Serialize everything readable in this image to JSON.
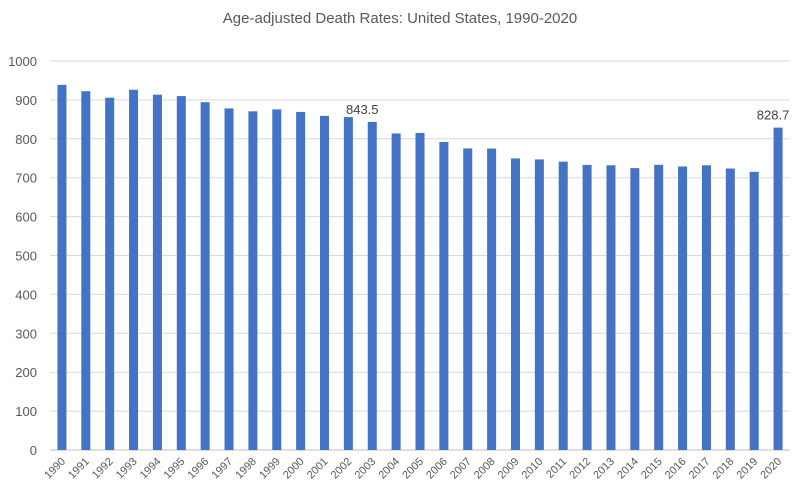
{
  "chart_data": {
    "type": "bar",
    "title": "Age-adjusted Death Rates: United States, 1990-2020",
    "xlabel": "",
    "ylabel": "",
    "ylim": [
      0,
      1000
    ],
    "yticks": [
      0,
      100,
      200,
      300,
      400,
      500,
      600,
      700,
      800,
      900,
      1000
    ],
    "grid": true,
    "color": "#4472C4",
    "categories": [
      "1990",
      "1991",
      "1992",
      "1993",
      "1994",
      "1995",
      "1996",
      "1997",
      "1998",
      "1999",
      "2000",
      "2001",
      "2002",
      "2003",
      "2004",
      "2005",
      "2006",
      "2007",
      "2008",
      "2009",
      "2010",
      "2011",
      "2012",
      "2013",
      "2014",
      "2015",
      "2016",
      "2017",
      "2018",
      "2019",
      "2020"
    ],
    "values": [
      938.7,
      922.3,
      905.6,
      926.1,
      913.5,
      909.8,
      894.1,
      878.1,
      870.6,
      875.6,
      869.0,
      858.8,
      855.9,
      843.5,
      813.7,
      815.0,
      791.8,
      775.3,
      774.9,
      749.6,
      747.0,
      741.3,
      732.8,
      731.9,
      724.6,
      733.1,
      728.8,
      731.9,
      723.6,
      715.2,
      828.7
    ],
    "data_labels": [
      {
        "category": "2003",
        "text": "843.5"
      },
      {
        "category": "2020",
        "text": "828.7"
      }
    ]
  }
}
